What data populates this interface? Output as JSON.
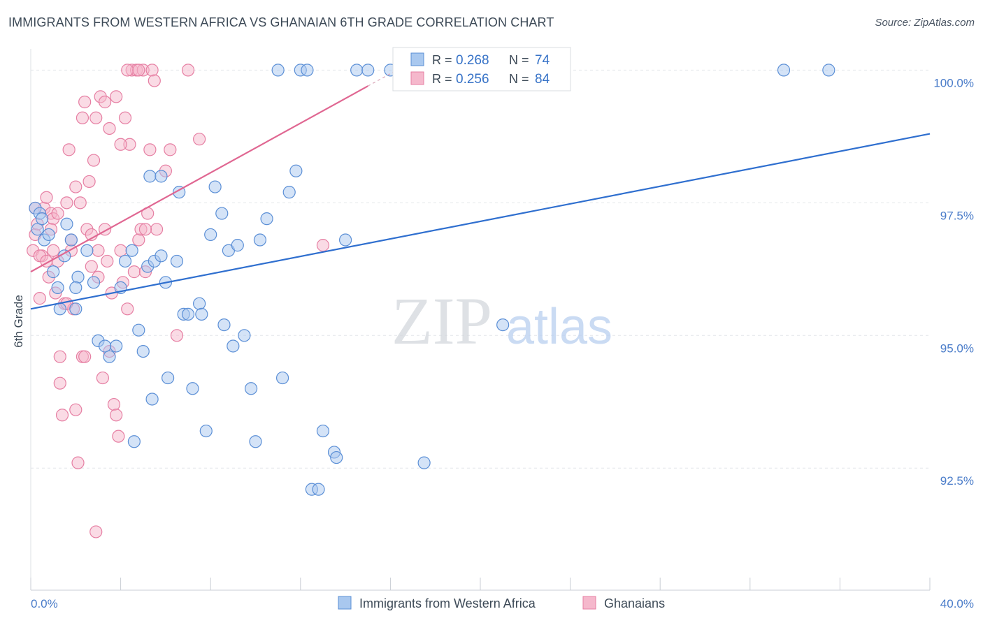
{
  "title": "IMMIGRANTS FROM WESTERN AFRICA VS GHANAIAN 6TH GRADE CORRELATION CHART",
  "source": "Source: ZipAtlas.com",
  "watermark": {
    "zip": "ZIP",
    "atlas": "atlas"
  },
  "colors": {
    "blue_fill": "#a9c8ef",
    "blue_stroke": "#5b8fd6",
    "blue_line": "#2f6fcf",
    "pink_fill": "#f5b8cc",
    "pink_stroke": "#e67fa3",
    "pink_line": "#e06792",
    "grid": "#e3e6ea",
    "axis_text": "#4a7cc9"
  },
  "legend": {
    "blue": {
      "r_label": "R = ",
      "r_value": "0.268",
      "n_label": "N = ",
      "n_value": "74"
    },
    "pink": {
      "r_label": "R = ",
      "r_value": "0.256",
      "n_label": "N = ",
      "n_value": "84"
    }
  },
  "chart_data": {
    "type": "scatter",
    "title": "IMMIGRANTS FROM WESTERN AFRICA VS GHANAIAN 6TH GRADE CORRELATION CHART",
    "xlabel": "",
    "ylabel": "6th Grade",
    "xlim": [
      0,
      40
    ],
    "ylim": [
      90.2,
      100.4
    ],
    "x_tick_labels": [
      "0.0%",
      "40.0%"
    ],
    "y_ticks": [
      100.0,
      97.5,
      95.0,
      92.5
    ],
    "y_tick_labels": [
      "100.0%",
      "97.5%",
      "95.0%",
      "92.5%"
    ],
    "grid": true,
    "legend_position": "top-center",
    "series": [
      {
        "name": "Immigrants from Western Africa",
        "color": "#a9c8ef",
        "trend": {
          "x": [
            0,
            40
          ],
          "y": [
            95.5,
            98.8
          ]
        },
        "points": [
          [
            0.2,
            97.4
          ],
          [
            0.4,
            97.3
          ],
          [
            0.6,
            96.8
          ],
          [
            0.8,
            96.9
          ],
          [
            0.3,
            97.0
          ],
          [
            1.0,
            96.2
          ],
          [
            1.2,
            95.9
          ],
          [
            1.5,
            96.5
          ],
          [
            1.6,
            97.1
          ],
          [
            1.8,
            96.8
          ],
          [
            2.0,
            95.5
          ],
          [
            2.1,
            96.1
          ],
          [
            2.5,
            96.6
          ],
          [
            2.8,
            96.0
          ],
          [
            3.0,
            94.9
          ],
          [
            3.3,
            94.8
          ],
          [
            3.5,
            94.6
          ],
          [
            4.0,
            95.9
          ],
          [
            4.2,
            96.4
          ],
          [
            4.5,
            96.6
          ],
          [
            4.8,
            95.1
          ],
          [
            5.0,
            94.7
          ],
          [
            5.2,
            96.3
          ],
          [
            5.3,
            98.0
          ],
          [
            5.4,
            93.8
          ],
          [
            5.5,
            96.4
          ],
          [
            5.8,
            96.5
          ],
          [
            6.0,
            96.0
          ],
          [
            6.1,
            94.2
          ],
          [
            6.5,
            96.4
          ],
          [
            6.6,
            97.7
          ],
          [
            6.8,
            95.4
          ],
          [
            7.0,
            95.4
          ],
          [
            7.2,
            94.0
          ],
          [
            7.5,
            95.6
          ],
          [
            7.6,
            95.4
          ],
          [
            7.8,
            93.2
          ],
          [
            8.0,
            96.9
          ],
          [
            8.2,
            97.8
          ],
          [
            8.5,
            97.3
          ],
          [
            8.6,
            95.2
          ],
          [
            8.8,
            96.6
          ],
          [
            9.0,
            94.8
          ],
          [
            9.2,
            96.7
          ],
          [
            9.5,
            95.0
          ],
          [
            9.8,
            94.0
          ],
          [
            10.0,
            93.0
          ],
          [
            10.2,
            96.8
          ],
          [
            10.5,
            97.2
          ],
          [
            11.0,
            100.0
          ],
          [
            11.2,
            94.2
          ],
          [
            11.5,
            97.7
          ],
          [
            11.8,
            98.1
          ],
          [
            12.0,
            100.0
          ],
          [
            12.3,
            100.0
          ],
          [
            12.5,
            92.1
          ],
          [
            12.8,
            92.1
          ],
          [
            13.0,
            93.2
          ],
          [
            13.5,
            92.8
          ],
          [
            13.6,
            92.7
          ],
          [
            14.0,
            96.8
          ],
          [
            14.5,
            100.0
          ],
          [
            15.0,
            100.0
          ],
          [
            16.0,
            100.0
          ],
          [
            17.5,
            92.6
          ],
          [
            21.0,
            95.2
          ],
          [
            33.5,
            100.0
          ],
          [
            35.5,
            100.0
          ],
          [
            0.5,
            97.2
          ],
          [
            1.3,
            95.5
          ],
          [
            3.8,
            94.8
          ],
          [
            5.8,
            98.0
          ],
          [
            2.0,
            95.9
          ],
          [
            4.6,
            93.0
          ]
        ]
      },
      {
        "name": "Ghanaians",
        "color": "#f5b8cc",
        "trend": {
          "x": [
            0,
            15.0
          ],
          "y": [
            96.2,
            99.7
          ]
        },
        "points": [
          [
            0.1,
            96.6
          ],
          [
            0.2,
            96.9
          ],
          [
            0.3,
            97.1
          ],
          [
            0.4,
            95.7
          ],
          [
            0.5,
            96.5
          ],
          [
            0.6,
            97.4
          ],
          [
            0.7,
            97.6
          ],
          [
            0.8,
            96.1
          ],
          [
            0.9,
            97.3
          ],
          [
            1.0,
            97.2
          ],
          [
            1.1,
            95.8
          ],
          [
            1.2,
            96.4
          ],
          [
            1.3,
            94.1
          ],
          [
            1.4,
            93.5
          ],
          [
            1.5,
            95.6
          ],
          [
            1.6,
            97.5
          ],
          [
            1.7,
            98.5
          ],
          [
            1.8,
            96.8
          ],
          [
            1.9,
            95.5
          ],
          [
            2.0,
            93.6
          ],
          [
            2.1,
            92.6
          ],
          [
            2.2,
            97.5
          ],
          [
            2.3,
            94.6
          ],
          [
            2.4,
            99.4
          ],
          [
            2.5,
            97.0
          ],
          [
            2.6,
            97.9
          ],
          [
            2.7,
            96.9
          ],
          [
            2.8,
            98.3
          ],
          [
            2.9,
            99.1
          ],
          [
            3.0,
            96.6
          ],
          [
            3.1,
            99.5
          ],
          [
            3.2,
            94.2
          ],
          [
            3.3,
            99.4
          ],
          [
            3.4,
            96.4
          ],
          [
            3.5,
            98.9
          ],
          [
            3.6,
            95.8
          ],
          [
            3.7,
            93.7
          ],
          [
            3.8,
            93.5
          ],
          [
            3.9,
            93.1
          ],
          [
            4.0,
            96.6
          ],
          [
            4.1,
            96.0
          ],
          [
            4.2,
            99.1
          ],
          [
            4.3,
            95.5
          ],
          [
            4.4,
            98.6
          ],
          [
            4.5,
            100.0
          ],
          [
            4.6,
            96.2
          ],
          [
            4.7,
            100.0
          ],
          [
            4.8,
            96.8
          ],
          [
            4.9,
            97.0
          ],
          [
            5.0,
            100.0
          ],
          [
            5.1,
            96.2
          ],
          [
            5.2,
            97.3
          ],
          [
            5.3,
            98.5
          ],
          [
            5.4,
            100.0
          ],
          [
            5.5,
            99.8
          ],
          [
            5.6,
            97.0
          ],
          [
            6.0,
            98.1
          ],
          [
            6.2,
            98.5
          ],
          [
            6.5,
            95.0
          ],
          [
            7.0,
            100.0
          ],
          [
            7.5,
            98.7
          ],
          [
            2.9,
            91.3
          ],
          [
            13.0,
            96.7
          ],
          [
            0.4,
            96.5
          ],
          [
            0.9,
            97.0
          ],
          [
            1.3,
            94.6
          ],
          [
            1.6,
            95.6
          ],
          [
            2.4,
            94.6
          ],
          [
            2.7,
            96.3
          ],
          [
            3.0,
            96.1
          ],
          [
            3.5,
            94.7
          ],
          [
            4.3,
            100.0
          ],
          [
            4.8,
            100.0
          ],
          [
            1.8,
            96.6
          ],
          [
            2.3,
            99.1
          ],
          [
            3.8,
            99.5
          ],
          [
            0.7,
            96.4
          ],
          [
            0.2,
            97.4
          ],
          [
            1.0,
            96.6
          ],
          [
            2.0,
            97.8
          ],
          [
            4.0,
            98.6
          ],
          [
            3.3,
            97.0
          ],
          [
            5.1,
            97.0
          ],
          [
            1.2,
            97.3
          ]
        ]
      }
    ]
  }
}
